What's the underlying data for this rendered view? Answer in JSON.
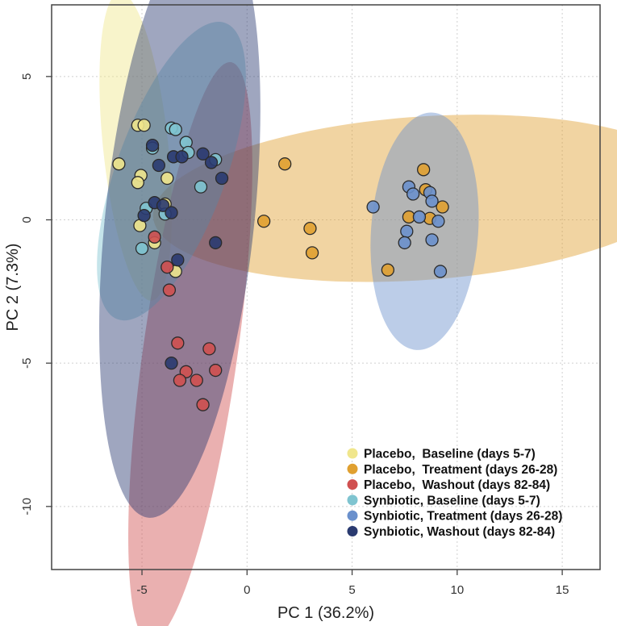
{
  "chart_data": {
    "type": "scatter",
    "title": "",
    "xlabel": "PC 1 (36.2%)",
    "ylabel": "PC 2 (7.3%)",
    "xlim": [
      -9.3,
      16.8
    ],
    "ylim": [
      -12.2,
      7.5
    ],
    "xticks": [
      -5,
      0,
      5,
      10,
      15
    ],
    "yticks": [
      5,
      0,
      -5,
      -10
    ],
    "grid": true,
    "legend_position": "bottom-right",
    "series": [
      {
        "name": "Placebo,  Baseline (days 5-7)",
        "color": "#f0e68c",
        "ellipse": {
          "cx": -5.3,
          "cy": 2.55,
          "rx": 1.55,
          "ry": 5.4,
          "angle": -6
        },
        "points": [
          [
            -6.1,
            1.95
          ],
          [
            -5.2,
            3.3
          ],
          [
            -4.9,
            3.3
          ],
          [
            -5.05,
            1.55
          ],
          [
            -5.2,
            1.3
          ],
          [
            -5.1,
            -0.2
          ],
          [
            -4.4,
            -0.8
          ],
          [
            -3.8,
            1.45
          ],
          [
            -3.9,
            0.55
          ],
          [
            -3.4,
            -1.8
          ]
        ]
      },
      {
        "name": "Placebo,  Treatment (days 26-28)",
        "color": "#e0a030",
        "ellipse": {
          "cx": 8.3,
          "cy": 0.75,
          "rx": 12.8,
          "ry": 2.85,
          "angle": -4
        },
        "points": [
          [
            1.8,
            1.95
          ],
          [
            0.8,
            -0.05
          ],
          [
            3.0,
            -0.3
          ],
          [
            3.1,
            -1.15
          ],
          [
            6.7,
            -1.75
          ],
          [
            8.4,
            1.75
          ],
          [
            8.5,
            1.05
          ],
          [
            7.7,
            0.1
          ],
          [
            8.7,
            0.05
          ],
          [
            9.3,
            0.45
          ]
        ]
      },
      {
        "name": "Placebo,  Washout (days 82-84)",
        "color": "#d05050",
        "ellipse": {
          "cx": -2.7,
          "cy": -4.6,
          "rx": 2.25,
          "ry": 10.2,
          "angle": 8
        },
        "points": [
          [
            -3.8,
            -1.65
          ],
          [
            -3.7,
            -2.45
          ],
          [
            -4.4,
            -0.6
          ],
          [
            -3.3,
            -4.3
          ],
          [
            -1.8,
            -4.5
          ],
          [
            -2.9,
            -5.3
          ],
          [
            -3.2,
            -5.6
          ],
          [
            -2.4,
            -5.6
          ],
          [
            -1.5,
            -5.25
          ],
          [
            -2.1,
            -6.45
          ]
        ]
      },
      {
        "name": "Synbiotic, Baseline (days 5-7)",
        "color": "#7fc4d0",
        "ellipse": {
          "cx": -3.6,
          "cy": 1.7,
          "rx": 2.6,
          "ry": 5.5,
          "angle": 20
        },
        "points": [
          [
            -3.6,
            3.2
          ],
          [
            -3.4,
            3.15
          ],
          [
            -4.5,
            2.5
          ],
          [
            -2.9,
            2.7
          ],
          [
            -2.8,
            2.35
          ],
          [
            -1.5,
            2.1
          ],
          [
            -4.8,
            0.4
          ],
          [
            -3.9,
            0.2
          ],
          [
            -2.2,
            1.15
          ],
          [
            -5.0,
            -1.0
          ]
        ]
      },
      {
        "name": "Synbiotic, Treatment (days 26-28)",
        "color": "#6a90cc",
        "ellipse": {
          "cx": 8.45,
          "cy": -0.4,
          "rx": 2.55,
          "ry": 4.15,
          "angle": 4
        },
        "points": [
          [
            6.0,
            0.45
          ],
          [
            7.7,
            1.15
          ],
          [
            7.9,
            0.9
          ],
          [
            8.2,
            0.1
          ],
          [
            8.7,
            0.95
          ],
          [
            8.8,
            0.65
          ],
          [
            9.1,
            -0.05
          ],
          [
            7.6,
            -0.4
          ],
          [
            7.5,
            -0.8
          ],
          [
            8.8,
            -0.7
          ],
          [
            9.2,
            -1.8
          ]
        ]
      },
      {
        "name": "Synbiotic, Washout (days 82-84)",
        "color": "#2a3a70",
        "ellipse": {
          "cx": -3.2,
          "cy": 0.05,
          "rx": 3.55,
          "ry": 10.5,
          "angle": 6
        },
        "points": [
          [
            -4.5,
            2.6
          ],
          [
            -4.2,
            1.9
          ],
          [
            -3.5,
            2.2
          ],
          [
            -3.1,
            2.2
          ],
          [
            -2.1,
            2.3
          ],
          [
            -1.7,
            2.0
          ],
          [
            -1.2,
            1.45
          ],
          [
            -4.4,
            0.6
          ],
          [
            -4.0,
            0.5
          ],
          [
            -3.6,
            0.25
          ],
          [
            -4.9,
            0.15
          ],
          [
            -1.5,
            -0.8
          ],
          [
            -3.3,
            -1.4
          ],
          [
            -3.6,
            -5.0
          ]
        ]
      }
    ]
  }
}
